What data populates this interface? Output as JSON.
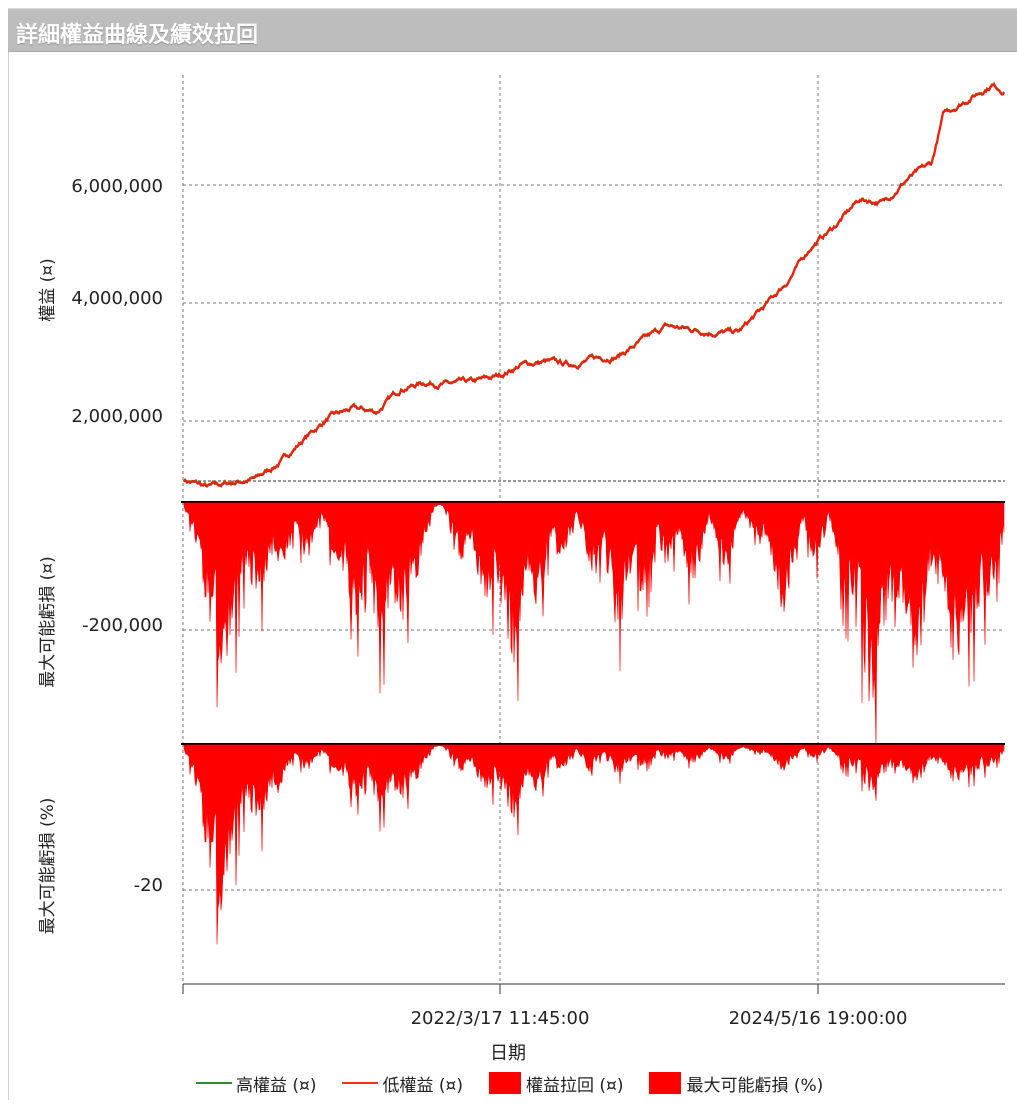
{
  "header": {
    "title": "詳細權益曲線及績效拉回"
  },
  "chart_data": [
    {
      "type": "line",
      "panel": "equity",
      "ylabel": "權益 (¤)",
      "yticks": [
        "2,000,000",
        "4,000,000",
        "6,000,000"
      ],
      "ytick_values": [
        2000000,
        4000000,
        6000000
      ],
      "ylim": [
        1000000,
        7750000
      ],
      "series": [
        {
          "name": "高權益 (¤)",
          "color": "#2e8b2e"
        },
        {
          "name": "低權益 (¤)",
          "color": "#ff2a1a"
        }
      ],
      "x_start": "2020-03",
      "x_end": "2025-11",
      "points": [
        [
          "2020-03",
          1000000
        ],
        [
          "2020-05",
          870000
        ],
        [
          "2020-07",
          950000
        ],
        [
          "2020-09",
          1020000
        ],
        [
          "2020-11",
          1300000
        ],
        [
          "2021-01",
          1700000
        ],
        [
          "2021-03",
          2050000
        ],
        [
          "2021-05",
          2200000
        ],
        [
          "2021-07",
          2150000
        ],
        [
          "2021-09",
          2550000
        ],
        [
          "2021-11",
          2650000
        ],
        [
          "2022-01",
          2620000
        ],
        [
          "2022-03",
          2650000
        ],
        [
          "2022-05",
          2750000
        ],
        [
          "2022-07",
          2950000
        ],
        [
          "2022-09",
          3000000
        ],
        [
          "2022-11",
          2950000
        ],
        [
          "2023-01",
          3050000
        ],
        [
          "2023-03",
          3100000
        ],
        [
          "2023-05",
          3350000
        ],
        [
          "2023-07",
          3600000
        ],
        [
          "2023-09",
          3550000
        ],
        [
          "2023-11",
          3500000
        ],
        [
          "2024-01",
          3500000
        ],
        [
          "2024-03",
          3900000
        ],
        [
          "2024-05",
          4350000
        ],
        [
          "2024-07",
          4950000
        ],
        [
          "2024-09",
          5300000
        ],
        [
          "2024-11",
          5750000
        ],
        [
          "2025-01",
          5700000
        ],
        [
          "2025-03",
          6100000
        ],
        [
          "2025-05",
          6350000
        ],
        [
          "2025-06",
          7200000
        ],
        [
          "2025-08",
          7450000
        ],
        [
          "2025-10",
          7700000
        ],
        [
          "2025-11",
          7600000
        ]
      ]
    },
    {
      "type": "area",
      "panel": "drawdown_amount",
      "ylabel": "最大可能虧損 (¤)",
      "yticks": [
        "-200,000"
      ],
      "ytick_values": [
        -200000
      ],
      "ylim": [
        -380000,
        0
      ],
      "series": [
        {
          "name": "權益拉回 (¤)",
          "color": "#ff0000"
        }
      ],
      "min_value": -380000
    },
    {
      "type": "area",
      "panel": "drawdown_percent",
      "ylabel": "最大可能虧損 (%)",
      "yticks": [
        "-20"
      ],
      "ytick_values": [
        -20
      ],
      "ylim": [
        -28,
        0
      ],
      "series": [
        {
          "name": "最大可能虧損 (%)",
          "color": "#ff0000"
        }
      ],
      "min_value": -27.5
    }
  ],
  "x_axis": {
    "label": "日期",
    "ticks": [
      "2022/3/17 11:45:00",
      "2024/5/16 19:00:00"
    ]
  },
  "legend": [
    {
      "label": "高權益 (¤)",
      "kind": "line",
      "color": "#2e8b2e"
    },
    {
      "label": "低權益 (¤)",
      "kind": "line",
      "color": "#ff2a1a"
    },
    {
      "label": "權益拉回 (¤)",
      "kind": "box",
      "color": "#ff0000"
    },
    {
      "label": "最大可能虧損 (%)",
      "kind": "box",
      "color": "#ff0000"
    }
  ]
}
